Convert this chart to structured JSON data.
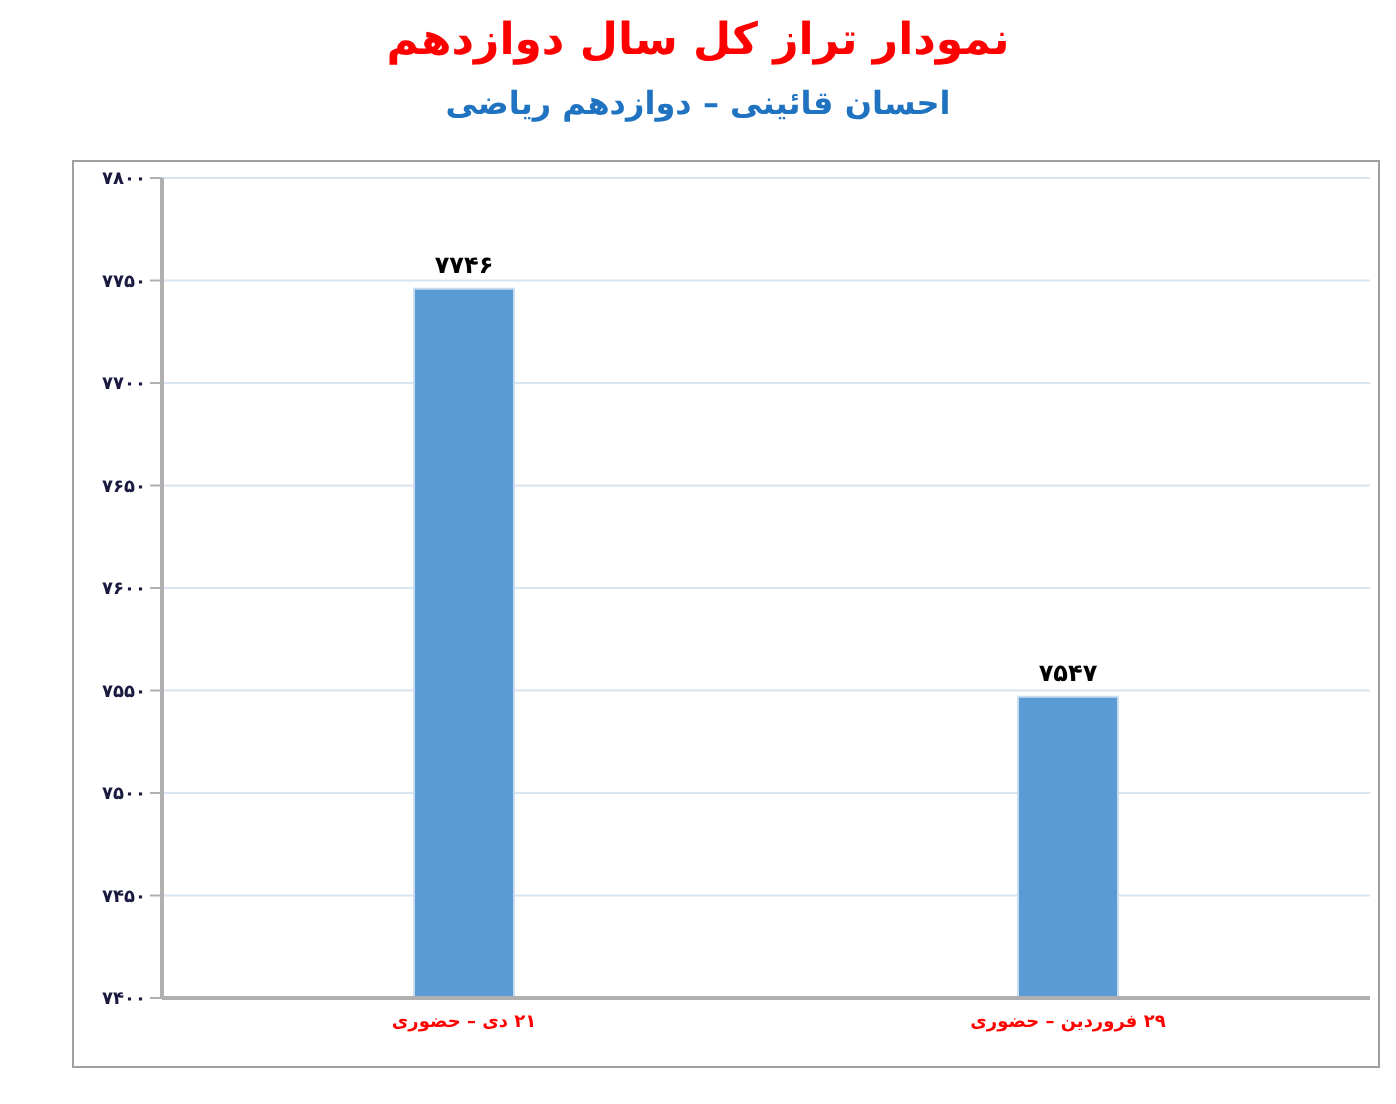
{
  "chart_data": {
    "type": "bar",
    "title": "نمودار تراز کل سال دوازدهم",
    "subtitle": "احسان قائینی – دوازدهم ریاضی",
    "categories": [
      "۲۱ دی – حضوری",
      "۲۹ فروردین – حضوری"
    ],
    "values": [
      7746,
      7547
    ],
    "value_labels": [
      "۷۷۴۶",
      "۷۵۴۷"
    ],
    "color": "#5b9bd5",
    "ylim": [
      7400,
      7800
    ],
    "yticks": [
      {
        "value": 7400,
        "label": "۷۴۰۰"
      },
      {
        "value": 7450,
        "label": "۷۴۵۰"
      },
      {
        "value": 7500,
        "label": "۷۵۰۰"
      },
      {
        "value": 7550,
        "label": "۷۵۵۰"
      },
      {
        "value": 7600,
        "label": "۷۶۰۰"
      },
      {
        "value": 7650,
        "label": "۷۶۵۰"
      },
      {
        "value": 7700,
        "label": "۷۷۰۰"
      },
      {
        "value": 7750,
        "label": "۷۷۵۰"
      },
      {
        "value": 7800,
        "label": "۷۸۰۰"
      }
    ],
    "grid": "y",
    "legend": false
  }
}
